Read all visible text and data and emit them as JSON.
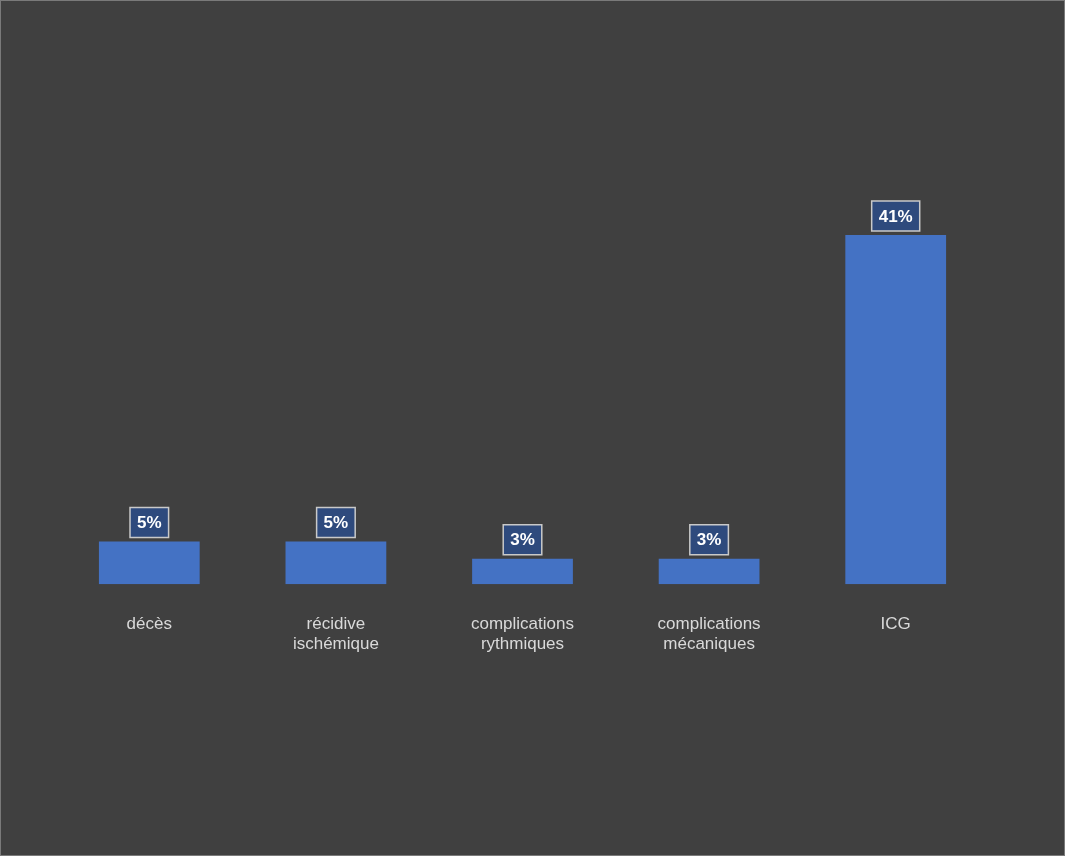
{
  "chart_data": {
    "type": "bar",
    "categories": [
      "décès",
      "récidive ischémique",
      "complications rythmiques",
      "complications mécaniques",
      "ICG"
    ],
    "values": [
      5,
      5,
      3,
      3,
      41
    ],
    "color": "#4472c4",
    "value_labels": [
      "5%",
      "5%",
      "3%",
      "3%",
      "41%"
    ],
    "grid": false,
    "legend": false
  }
}
